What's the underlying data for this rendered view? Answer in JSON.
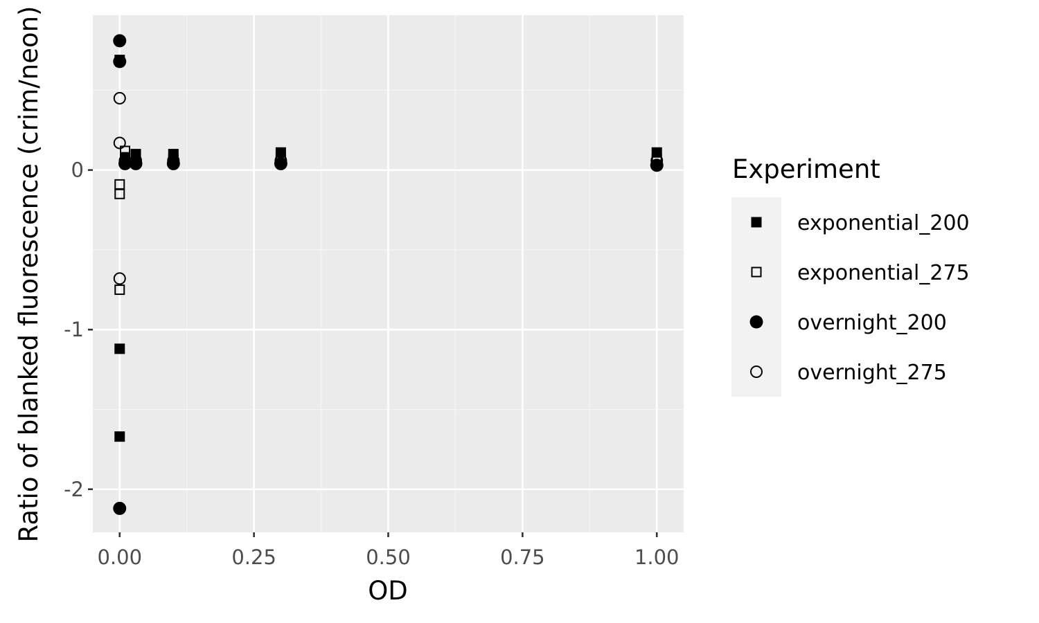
{
  "chart_data": {
    "type": "scatter",
    "xlabel": "OD",
    "ylabel": "Ratio of blanked fluorescence (crim/neon)",
    "xlim": [
      -0.05,
      1.05
    ],
    "ylim": [
      -2.27,
      0.97
    ],
    "x_ticks": [
      0,
      0.25,
      0.5,
      0.75,
      1
    ],
    "x_tick_labels": [
      "0.00",
      "0.25",
      "0.50",
      "0.75",
      "1.00"
    ],
    "y_ticks": [
      0,
      -1,
      -2
    ],
    "y_tick_labels": [
      "0",
      "-1",
      "-2"
    ],
    "grid": true,
    "legend": {
      "title": "Experiment",
      "position": "right"
    },
    "series": [
      {
        "name": "exponential_200",
        "shape": "square",
        "filled": true,
        "points": [
          [
            0,
            0.69
          ],
          [
            0,
            -1.12
          ],
          [
            0,
            -1.67
          ],
          [
            0.01,
            0.08
          ],
          [
            0.03,
            0.1
          ],
          [
            0.1,
            0.1
          ],
          [
            0.3,
            0.11
          ],
          [
            1.0,
            0.11
          ]
        ]
      },
      {
        "name": "exponential_275",
        "shape": "square",
        "filled": false,
        "points": [
          [
            0,
            -0.09
          ],
          [
            0,
            -0.15
          ],
          [
            0,
            -0.75
          ],
          [
            0.01,
            0.12
          ],
          [
            0.03,
            0.07
          ],
          [
            0.1,
            0.07
          ],
          [
            0.3,
            0.07
          ],
          [
            1.0,
            0.07
          ]
        ]
      },
      {
        "name": "overnight_200",
        "shape": "circle",
        "filled": true,
        "points": [
          [
            0,
            0.81
          ],
          [
            0,
            0.68
          ],
          [
            0,
            -2.12
          ],
          [
            0.01,
            0.04
          ],
          [
            0.03,
            0.04
          ],
          [
            0.1,
            0.04
          ],
          [
            0.3,
            0.04
          ],
          [
            1.0,
            0.03
          ]
        ]
      },
      {
        "name": "overnight_275",
        "shape": "circle",
        "filled": false,
        "points": [
          [
            0,
            0.45
          ],
          [
            0,
            0.17
          ],
          [
            0,
            -0.68
          ],
          [
            0.01,
            0.06
          ],
          [
            0.03,
            0.06
          ],
          [
            0.1,
            0.06
          ],
          [
            0.3,
            0.06
          ],
          [
            1.0,
            0.06
          ]
        ]
      }
    ]
  },
  "colors": {
    "panel_background": "#ebebeb",
    "grid_major": "#ffffff",
    "grid_minor": "#f5f5f5",
    "legend_key_background": "#f2f2f2",
    "point": "#000000"
  }
}
